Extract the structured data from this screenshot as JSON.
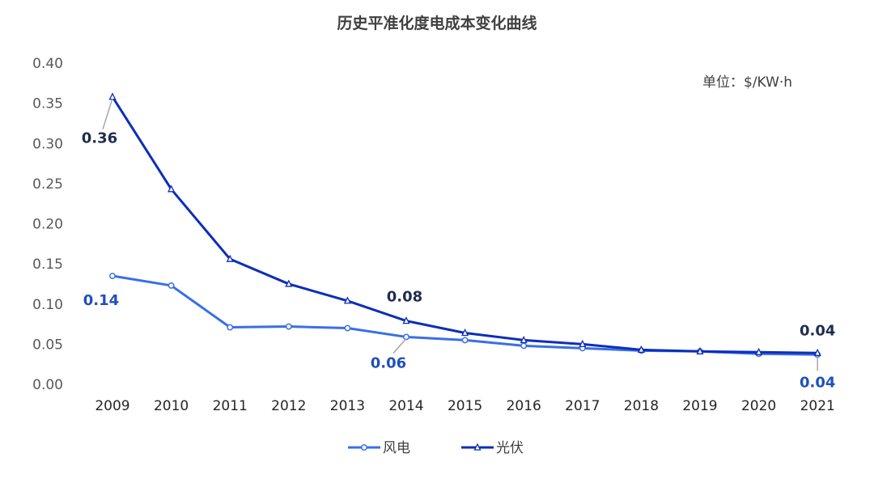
{
  "chart_data": {
    "type": "line",
    "title": "历史平准化度电成本变化曲线",
    "unit": "单位：$/KW·h",
    "categories": [
      "2009",
      "2010",
      "2011",
      "2012",
      "2013",
      "2014",
      "2015",
      "2016",
      "2017",
      "2018",
      "2019",
      "2020",
      "2021"
    ],
    "ylim": [
      0,
      0.4
    ],
    "yticks": [
      "0.00",
      "0.05",
      "0.10",
      "0.15",
      "0.20",
      "0.25",
      "0.30",
      "0.35",
      "0.40"
    ],
    "grid": false,
    "legend_position": "bottom",
    "series": [
      {
        "name": "风电",
        "color": "#3a6ee8",
        "marker": "circle",
        "values": [
          0.135,
          0.123,
          0.071,
          0.072,
          0.07,
          0.059,
          0.055,
          0.048,
          0.045,
          0.042,
          0.041,
          0.038,
          0.037
        ]
      },
      {
        "name": "光伏",
        "color": "#0d2eb8",
        "marker": "triangle",
        "values": [
          0.358,
          0.243,
          0.156,
          0.125,
          0.104,
          0.079,
          0.064,
          0.055,
          0.05,
          0.043,
          0.041,
          0.04,
          0.039
        ]
      }
    ],
    "annotations": [
      {
        "series": 0,
        "index": 0,
        "text": "0.14",
        "color": "#1f4fbf"
      },
      {
        "series": 0,
        "index": 5,
        "text": "0.06",
        "color": "#1f4fbf"
      },
      {
        "series": 0,
        "index": 12,
        "text": "0.04",
        "color": "#1f4fbf"
      },
      {
        "series": 1,
        "index": 0,
        "text": "0.36",
        "color": "#1f2d4f"
      },
      {
        "series": 1,
        "index": 5,
        "text": "0.08",
        "color": "#1f2d4f"
      },
      {
        "series": 1,
        "index": 12,
        "text": "0.04",
        "color": "#1f2d4f"
      }
    ]
  }
}
